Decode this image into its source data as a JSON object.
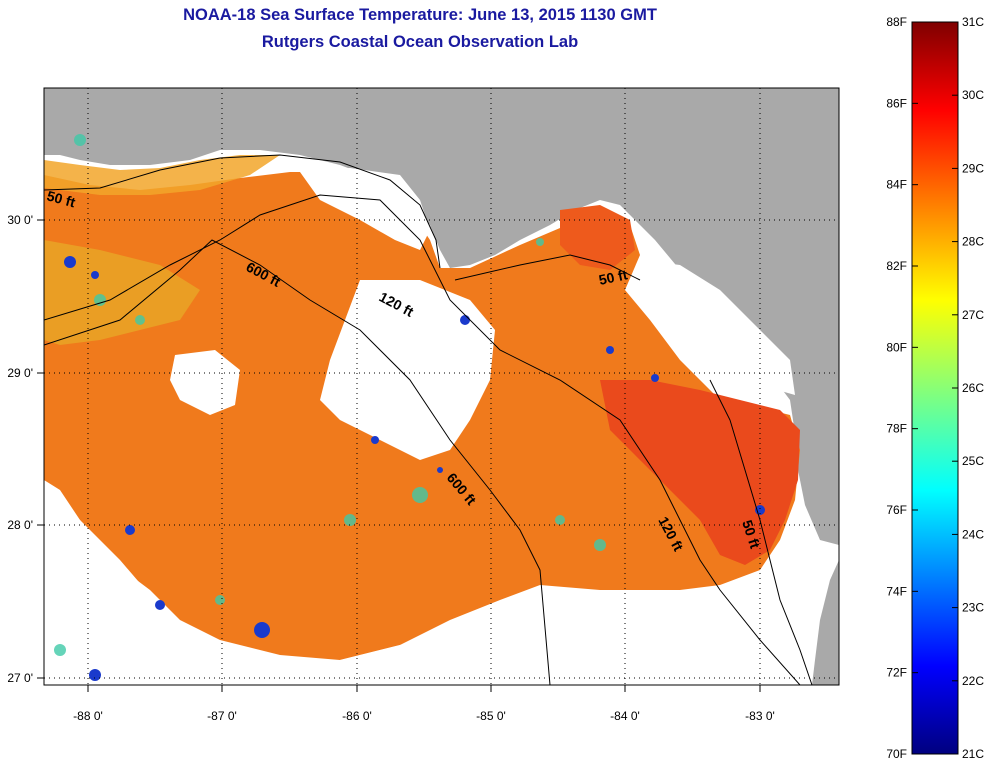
{
  "title": {
    "line1": "NOAA-18 Sea Surface Temperature:  June 13, 2015 1130 GMT",
    "line2": "Rutgers Coastal Ocean Observation Lab"
  },
  "map": {
    "lon_labels": [
      "-88 0'",
      "-87 0'",
      "-86 0'",
      "-85 0'",
      "-84 0'",
      "-83 0'"
    ],
    "lat_labels": [
      "30 0'",
      "29 0'",
      "28 0'",
      "27 0'"
    ],
    "contours": [
      {
        "label": "50 ft"
      },
      {
        "label": "600 ft"
      },
      {
        "label": "120 ft"
      },
      {
        "label": "50 ft"
      },
      {
        "label": "600 ft"
      },
      {
        "label": "120 ft"
      },
      {
        "label": "50 ft"
      }
    ],
    "land_color": "#a9a9a9",
    "cloud_color": "#ffffff",
    "sst_color": "#f07a1c"
  },
  "colorbar": {
    "fahrenheit": [
      "88F",
      "86F",
      "84F",
      "82F",
      "80F",
      "78F",
      "76F",
      "74F",
      "72F",
      "70F"
    ],
    "celsius": [
      "31C",
      "30C",
      "29C",
      "28C",
      "27C",
      "26C",
      "25C",
      "24C",
      "23C",
      "22C",
      "21C"
    ]
  }
}
